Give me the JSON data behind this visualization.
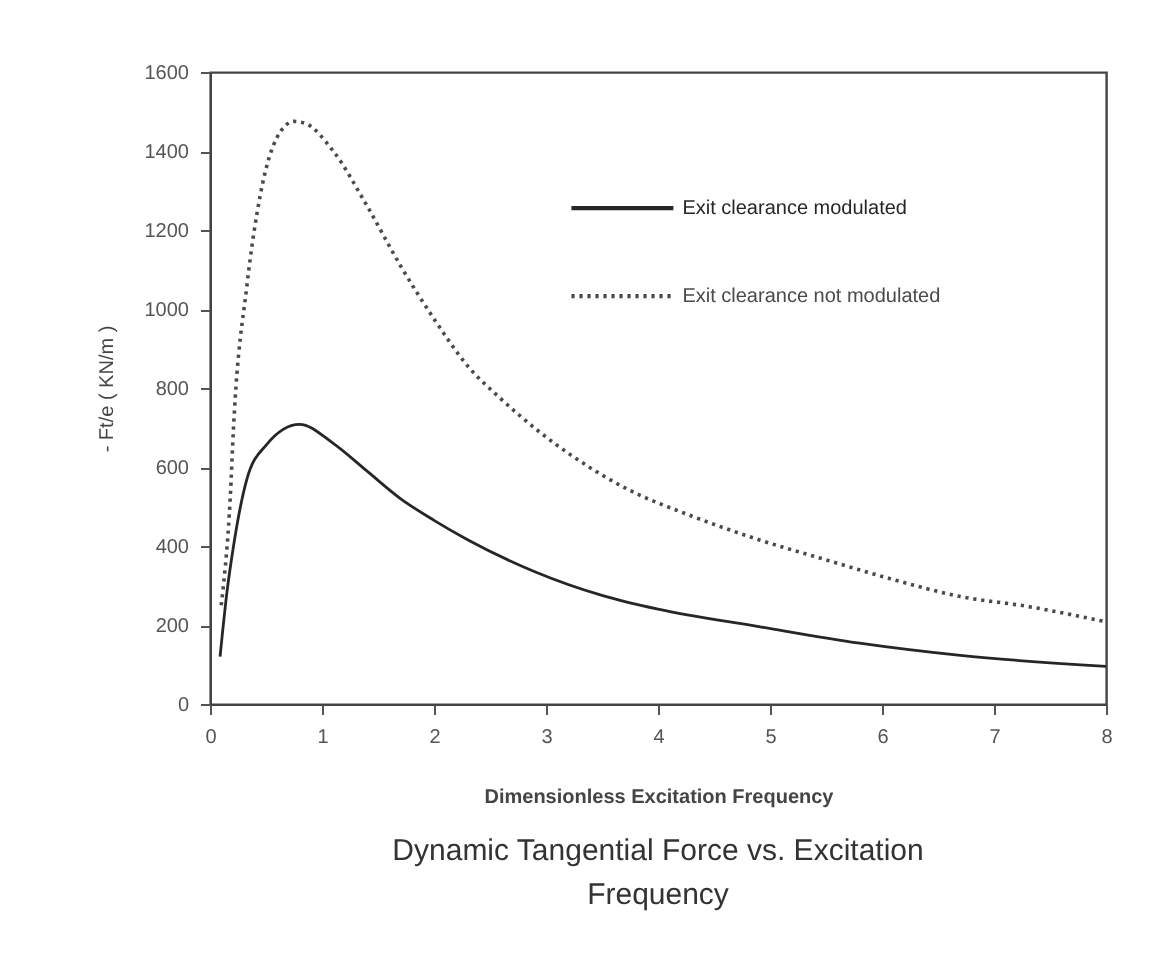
{
  "chart_data": {
    "type": "line",
    "title": "Dynamic Tangential Force vs. Excitation Frequency",
    "xlabel": "Dimensionless Excitation Frequency",
    "ylabel": "- Ft/e ( KN/m )",
    "xlim": [
      0,
      8
    ],
    "xticks": [
      0,
      1,
      2,
      3,
      4,
      5,
      6,
      7,
      8
    ],
    "ylim": [
      0,
      1600
    ],
    "yticks": [
      0,
      200,
      400,
      600,
      800,
      1000,
      1200,
      1400,
      1600
    ],
    "legend": "top right",
    "series": [
      {
        "name": "Exit clearance modulated",
        "color": "#262626",
        "line_style": "solid",
        "x": [
          0.09,
          0.15,
          0.21,
          0.33,
          0.5,
          0.8,
          1.1,
          1.4,
          1.7,
          2.0,
          2.3,
          2.9,
          3.5,
          4.0,
          4.9,
          5.8,
          6.7,
          8.0
        ],
        "values": [
          120,
          280,
          400,
          570,
          655,
          708,
          660,
          590,
          520,
          465,
          416,
          335,
          275,
          240,
          196,
          154,
          123,
          95
        ]
      },
      {
        "name": "Exit clearance not modulated",
        "color": "#4a4a4a",
        "line_style": "dotted",
        "x": [
          0.1,
          0.12,
          0.18,
          0.21,
          0.33,
          0.45,
          0.6,
          0.75,
          0.85,
          1.1,
          1.4,
          1.7,
          2.0,
          2.3,
          2.6,
          2.95,
          3.25,
          3.72,
          4.3,
          4.9,
          5.5,
          6.1,
          6.7,
          7.3,
          8.0
        ],
        "values": [
          250,
          300,
          518,
          700,
          1060,
          1290,
          1435,
          1475,
          1470,
          1400,
          1262,
          1110,
          975,
          856,
          772,
          687,
          625,
          545,
          476,
          416,
          365,
          315,
          272,
          247,
          208
        ]
      }
    ]
  }
}
